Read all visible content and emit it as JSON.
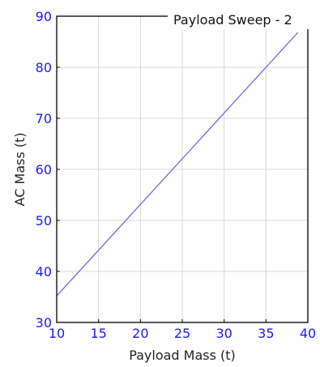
{
  "chart_data": {
    "type": "line",
    "title": "Payload Sweep - 2",
    "xlabel": "Payload Mass (t)",
    "ylabel": "AC Mass (t)",
    "xlim": [
      10,
      40
    ],
    "ylim": [
      30,
      90
    ],
    "xticks": [
      "10",
      "15",
      "20",
      "25",
      "30",
      "35",
      "40"
    ],
    "yticks": [
      "30",
      "40",
      "50",
      "60",
      "70",
      "80",
      "90"
    ],
    "grid": true,
    "series": [
      {
        "x": [
          10,
          38.8
        ],
        "values": [
          35.2,
          86.8
        ],
        "color": "#6a6ae0"
      }
    ],
    "colors": {
      "tick_label": "#1a1aff",
      "axis_label": "#222222",
      "grid": "#d8d8d8",
      "spine": "#000000"
    }
  }
}
